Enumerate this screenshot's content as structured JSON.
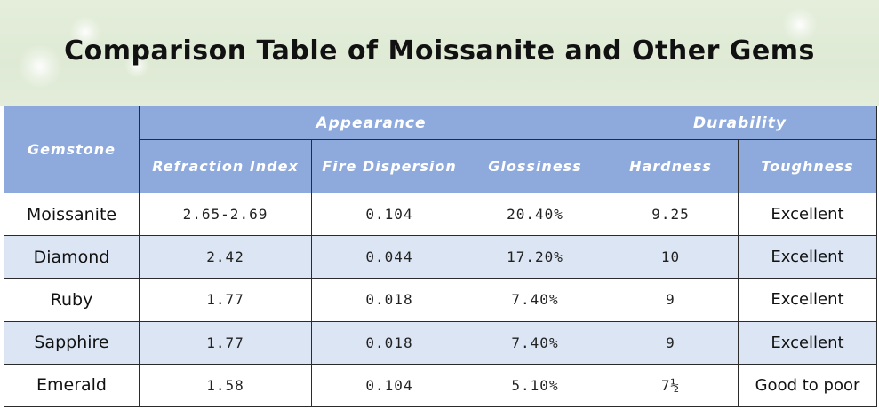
{
  "title": "Comparison Table of Moissanite and Other Gems",
  "colors": {
    "header_bg": "#8ea9db",
    "band_bg": "#dbe5f3",
    "banner_bg": "#e1ecd8"
  },
  "headers": {
    "gemstone": "Gemstone",
    "appearance": "Appearance",
    "durability": "Durability",
    "refraction": "Refraction Index",
    "fire": "Fire Dispersion",
    "gloss": "Glossiness",
    "hardness": "Hardness",
    "toughness": "Toughness"
  },
  "rows": [
    {
      "gem": "Moissanite",
      "refraction": "2.65-2.69",
      "fire": "0.104",
      "gloss": "20.40%",
      "hardness": "9.25",
      "toughness": "Excellent"
    },
    {
      "gem": "Diamond",
      "refraction": "2.42",
      "fire": "0.044",
      "gloss": "17.20%",
      "hardness": "10",
      "toughness": "Excellent"
    },
    {
      "gem": "Ruby",
      "refraction": "1.77",
      "fire": "0.018",
      "gloss": "7.40%",
      "hardness": "9",
      "toughness": "Excellent"
    },
    {
      "gem": "Sapphire",
      "refraction": "1.77",
      "fire": "0.018",
      "gloss": "7.40%",
      "hardness": "9",
      "toughness": "Excellent"
    },
    {
      "gem": "Emerald",
      "refraction": "1.58",
      "fire": "0.104",
      "gloss": "5.10%",
      "hardness": "7½",
      "toughness": "Good to poor"
    }
  ]
}
